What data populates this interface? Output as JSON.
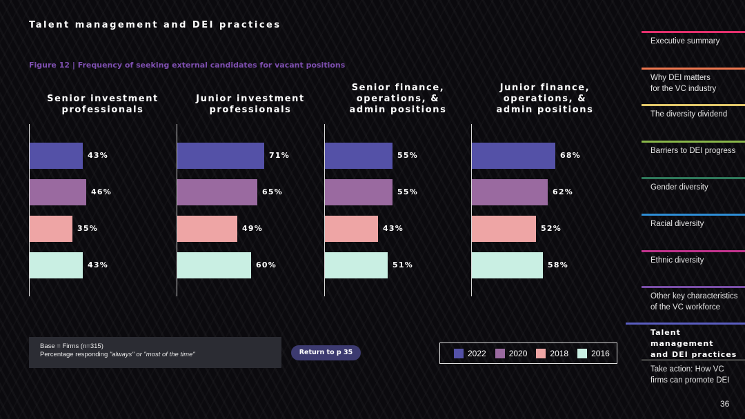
{
  "header": {
    "section_title": "Talent management and DEI practices",
    "figure_caption": "Figure 12  |  Frequency of seeking external candidates for vacant positions"
  },
  "chart_data": {
    "type": "bar",
    "orientation": "horizontal",
    "title": "Frequency of seeking external candidates for vacant positions",
    "value_unit": "%",
    "xlim": [
      0,
      100
    ],
    "series_names": [
      "2022",
      "2020",
      "2018",
      "2016"
    ],
    "series_colors": [
      "#5451a7",
      "#9a6aa0",
      "#eea5a5",
      "#c9efe3"
    ],
    "panels": [
      {
        "title": "Senior investment\nprofessionals",
        "values": [
          43,
          46,
          35,
          43
        ]
      },
      {
        "title": "Junior investment\nprofessionals",
        "values": [
          71,
          65,
          49,
          60
        ]
      },
      {
        "title": "Senior finance,\noperations, &\nadmin positions",
        "values": [
          55,
          55,
          43,
          51
        ]
      },
      {
        "title": "Junior finance,\noperations, &\nadmin positions",
        "values": [
          68,
          62,
          52,
          58
        ]
      }
    ],
    "legend_position": "bottom"
  },
  "footnote": {
    "base_line": "Base = Firms (n=315)",
    "response_prefix": "Percentage responding ",
    "response_italic": "\"always\" or \"most of the time\""
  },
  "return_button": {
    "label": "Return to p 35"
  },
  "legend": {
    "labels": [
      "2022",
      "2020",
      "2018",
      "2016"
    ]
  },
  "sidebar": {
    "items": [
      {
        "label": "Executive summary",
        "color": "#e3306d"
      },
      {
        "label": "Why DEI matters\nfor the VC industry",
        "color": "#f07850"
      },
      {
        "label": "The diversity dividend",
        "color": "#e3c86a"
      },
      {
        "label": "Barriers to DEI progress",
        "color": "#8ab84a"
      },
      {
        "label": "Gender diversity",
        "color": "#2f7a5c"
      },
      {
        "label": "Racial diversity",
        "color": "#2e8ed6"
      },
      {
        "label": "Ethnic diversity",
        "color": "#c0338c"
      },
      {
        "label": "Other key characteristics\nof the VC workforce",
        "color": "#7a4ea8"
      },
      {
        "label": "Talent management\nand DEI practices",
        "color": "#5b5ec2",
        "active": true
      },
      {
        "label": "Take action: How VC\nfirms can promote DEI",
        "color": "#3a3a3a"
      }
    ]
  },
  "page_number": "36"
}
